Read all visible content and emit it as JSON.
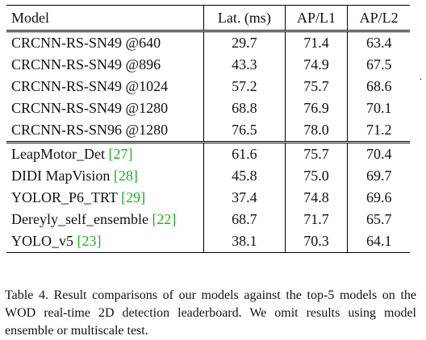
{
  "table": {
    "headers": [
      "Model",
      "Lat. (ms)",
      "AP/L1",
      "AP/L2"
    ],
    "ours": [
      {
        "model": "CRCNN-RS-SN49 @640",
        "lat": "29.7",
        "ap1": "71.4",
        "ap2": "63.4"
      },
      {
        "model": "CRCNN-RS-SN49 @896",
        "lat": "43.3",
        "ap1": "74.9",
        "ap2": "67.5"
      },
      {
        "model": "CRCNN-RS-SN49 @1024",
        "lat": "57.2",
        "ap1": "75.7",
        "ap2": "68.6"
      },
      {
        "model": "CRCNN-RS-SN49 @1280",
        "lat": "68.8",
        "ap1": "76.9",
        "ap2": "70.1"
      },
      {
        "model": "CRCNN-RS-SN96 @1280",
        "lat": "76.5",
        "ap1": "78.0",
        "ap2": "71.2"
      }
    ],
    "others": [
      {
        "model": "LeapMotor_Det",
        "ref": "[27]",
        "lat": "61.6",
        "ap1": "75.7",
        "ap2": "70.4"
      },
      {
        "model": "DIDI MapVision",
        "ref": "[28]",
        "lat": "45.8",
        "ap1": "75.0",
        "ap2": "69.7"
      },
      {
        "model": "YOLOR_P6_TRT",
        "ref": "[29]",
        "lat": "37.4",
        "ap1": "74.8",
        "ap2": "69.6"
      },
      {
        "model": "Dereyly_self_ensemble",
        "ref": "[22]",
        "lat": "68.7",
        "ap1": "71.7",
        "ap2": "65.7"
      },
      {
        "model": "YOLO_v5",
        "ref": "[23]",
        "lat": "38.1",
        "ap1": "70.3",
        "ap2": "64.1"
      }
    ]
  },
  "caption": "Table 4. Result comparisons of our models against the top-5 models on the WOD real-time 2D detection leaderboard. We omit results using model ensemble or multiscale test.",
  "margin_marker": "."
}
